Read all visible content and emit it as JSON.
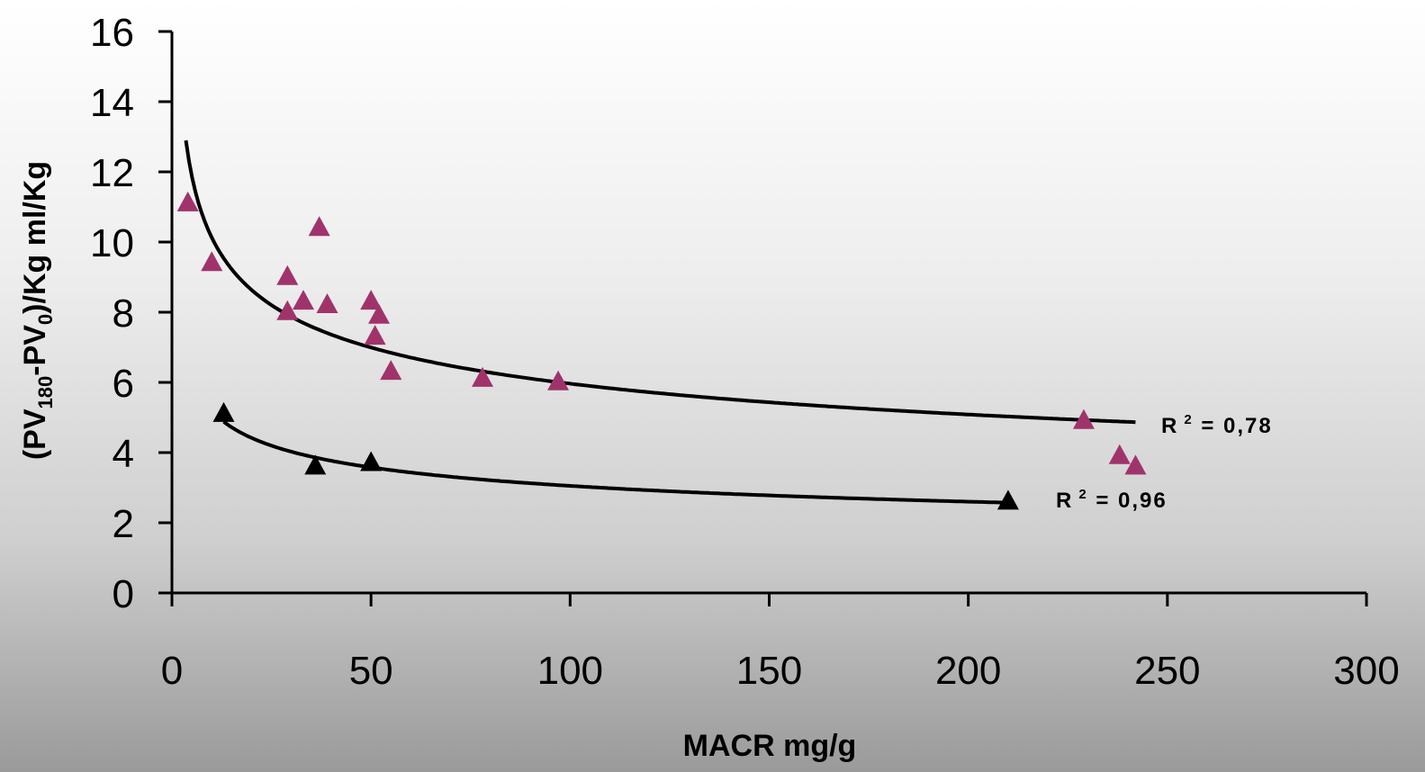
{
  "chart_data": {
    "type": "scatter",
    "xlabel": "MACR mg/g",
    "ylabel": {
      "prefix": "(PV",
      "sub1": "180",
      "mid": "-PV",
      "sub2": "0",
      "suffix": ")/Kg ml/Kg"
    },
    "xlim": [
      0,
      300
    ],
    "ylim": [
      0,
      16
    ],
    "xticks": [
      0,
      50,
      100,
      150,
      200,
      250,
      300
    ],
    "yticks": [
      0,
      2,
      4,
      6,
      8,
      10,
      12,
      14,
      16
    ],
    "grid": false,
    "series": [
      {
        "color": "#a0336b",
        "marker": "triangle",
        "points": [
          [
            4,
            11.1
          ],
          [
            10,
            9.4
          ],
          [
            29,
            9.0
          ],
          [
            29,
            8.0
          ],
          [
            33,
            8.3
          ],
          [
            37,
            10.4
          ],
          [
            39,
            8.2
          ],
          [
            50,
            8.3
          ],
          [
            51,
            7.3
          ],
          [
            52,
            7.9
          ],
          [
            55,
            6.3
          ],
          [
            78,
            6.1
          ],
          [
            97,
            6.0
          ],
          [
            229,
            4.9
          ],
          [
            238,
            3.9
          ],
          [
            242,
            3.6
          ]
        ],
        "trend": {
          "type": "power",
          "a": 17.2,
          "b": -0.23,
          "x_range": [
            3.5,
            242
          ]
        },
        "r2_label": {
          "prefix": "R",
          "sup": "2",
          "value": " = 0,78"
        }
      },
      {
        "color": "#000000",
        "marker": "triangle",
        "points": [
          [
            13,
            5.1
          ],
          [
            36,
            3.6
          ],
          [
            50,
            3.7
          ],
          [
            210,
            2.6
          ]
        ],
        "trend": {
          "type": "power",
          "a": 8.8,
          "b": -0.23,
          "x_range": [
            13,
            210
          ]
        },
        "r2_label": {
          "prefix": "R",
          "sup": "2",
          "value": " = 0,96"
        }
      }
    ]
  }
}
